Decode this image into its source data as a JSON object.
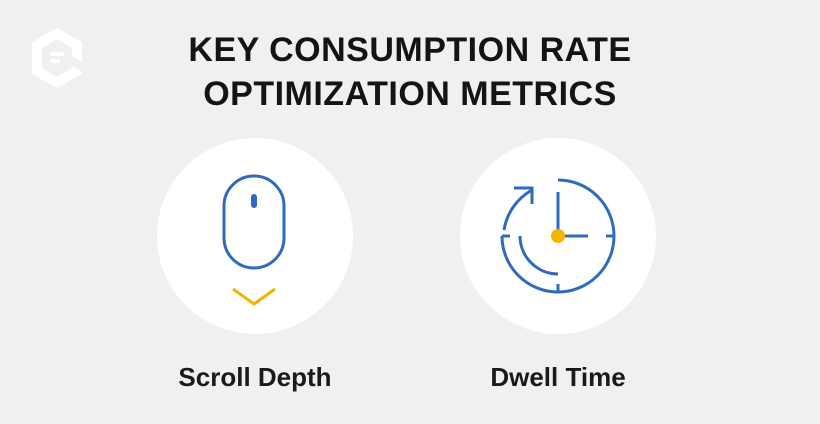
{
  "title": {
    "line1": "KEY CONSUMPTION RATE",
    "line2": "OPTIMIZATION METRICS"
  },
  "logo": {
    "icon": "contently-logo-icon",
    "color": "#ffffff"
  },
  "metrics": [
    {
      "label": "Scroll Depth",
      "icon": "mouse-scroll-icon"
    },
    {
      "label": "Dwell Time",
      "icon": "clock-refresh-icon"
    }
  ],
  "colors": {
    "background": "#f0f0f0",
    "circle": "#ffffff",
    "icon_stroke": "#2f6bbd",
    "accent": "#f5b400",
    "text": "#141414"
  }
}
